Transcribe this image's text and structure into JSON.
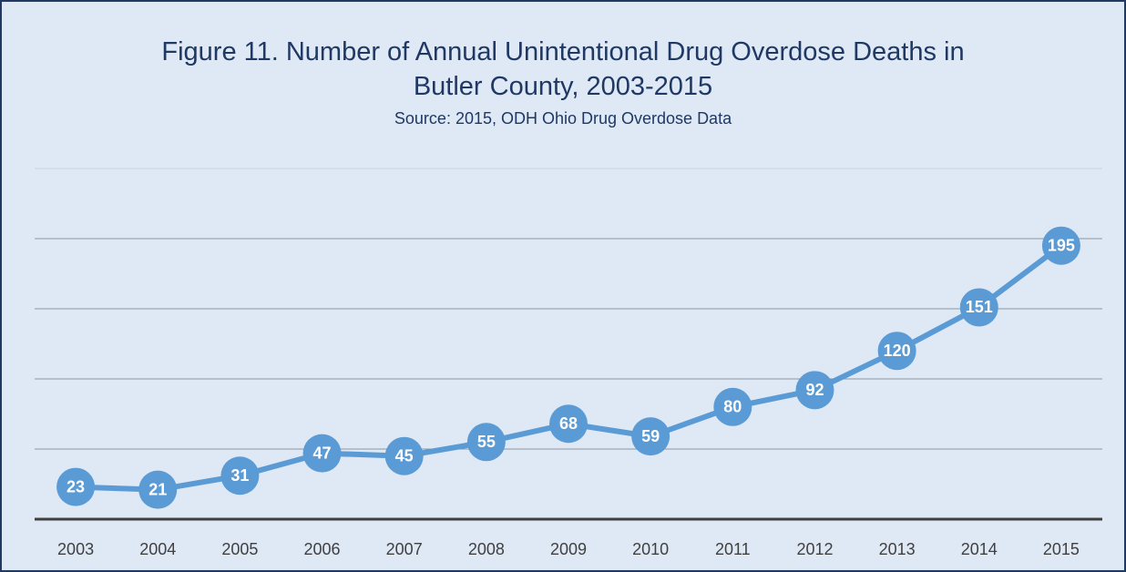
{
  "chart_data": {
    "type": "line",
    "title": "Figure 11. Number of Annual Unintentional Drug Overdose Deaths in Butler County, 2003-2015",
    "subtitle": "Source: 2015, ODH Ohio Drug Overdose Data",
    "categories": [
      "2003",
      "2004",
      "2005",
      "2006",
      "2007",
      "2008",
      "2009",
      "2010",
      "2011",
      "2012",
      "2013",
      "2014",
      "2015"
    ],
    "series": [
      {
        "name": "Unintentional Drug Overdose Deaths",
        "color": "#5b9bd5",
        "values": [
          23,
          21,
          31,
          47,
          45,
          55,
          68,
          59,
          80,
          92,
          120,
          151,
          195
        ]
      }
    ],
    "ylim": [
      0,
      250
    ],
    "yticks": [
      0,
      50,
      100,
      150,
      200,
      250
    ],
    "grid": true
  }
}
